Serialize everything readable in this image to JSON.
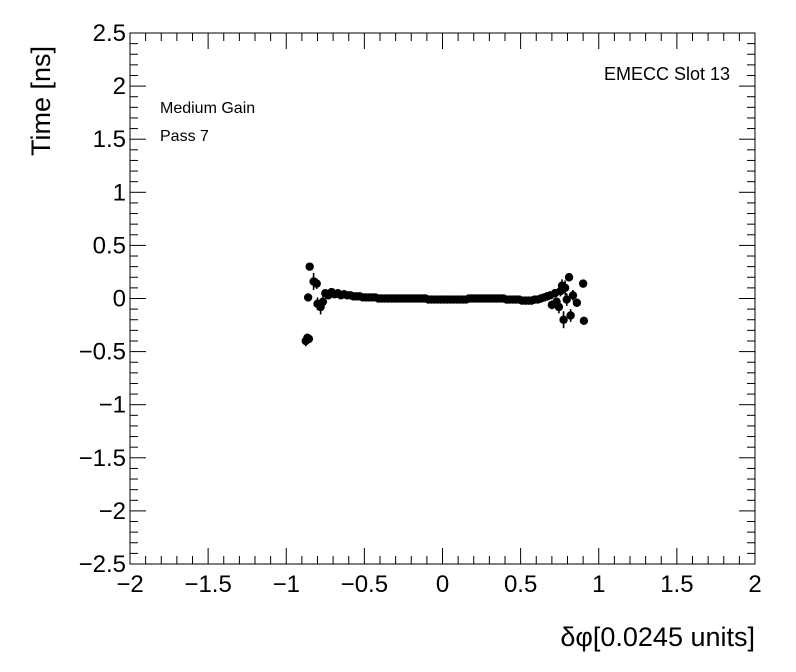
{
  "chart_data": {
    "type": "scatter",
    "xlabel": "δφ[0.0245 units]",
    "ylabel": "Time [ns]",
    "xlim": [
      -2,
      2
    ],
    "ylim": [
      -2.5,
      2.5
    ],
    "x_ticks": [
      "−2",
      "−1.5",
      "−1",
      "−0.5",
      "0",
      "0.5",
      "1",
      "1.5",
      "2"
    ],
    "y_ticks": [
      "−2.5",
      "−2",
      "−1.5",
      "−1",
      "−0.5",
      "0",
      "0.5",
      "1",
      "1.5",
      "2",
      "2.5"
    ],
    "annotations": {
      "top_right": "EMECC Slot 13",
      "line1": "Medium Gain",
      "line2": "Pass 7"
    },
    "grid": false,
    "legend": "none",
    "points": [
      {
        "x": -0.875,
        "y": -0.4,
        "err": 0.05
      },
      {
        "x": -0.865,
        "y": -0.37,
        "err": 0.04
      },
      {
        "x": -0.855,
        "y": -0.38,
        "err": 0.04
      },
      {
        "x": -0.86,
        "y": 0.01,
        "err": 0.03
      },
      {
        "x": -0.85,
        "y": 0.3,
        "err": 0.02
      },
      {
        "x": -0.825,
        "y": 0.16,
        "err": 0.08
      },
      {
        "x": -0.805,
        "y": 0.14,
        "err": 0.05
      },
      {
        "x": -0.8,
        "y": -0.05,
        "err": 0.06
      },
      {
        "x": -0.78,
        "y": -0.08,
        "err": 0.07
      },
      {
        "x": -0.765,
        "y": -0.03,
        "err": 0.05
      },
      {
        "x": -0.75,
        "y": 0.05,
        "err": 0.03
      },
      {
        "x": -0.73,
        "y": 0.03,
        "err": 0.03
      },
      {
        "x": -0.71,
        "y": 0.06,
        "err": 0.02
      },
      {
        "x": -0.69,
        "y": 0.04,
        "err": 0.02
      },
      {
        "x": -0.67,
        "y": 0.05,
        "err": 0.02
      },
      {
        "x": -0.65,
        "y": 0.03,
        "err": 0.02
      },
      {
        "x": -0.63,
        "y": 0.04,
        "err": 0.02
      },
      {
        "x": -0.61,
        "y": 0.03,
        "err": 0.01
      },
      {
        "x": -0.59,
        "y": 0.03,
        "err": 0.01
      },
      {
        "x": -0.57,
        "y": 0.02,
        "err": 0.01
      },
      {
        "x": -0.55,
        "y": 0.02,
        "err": 0.01
      },
      {
        "x": -0.53,
        "y": 0.02,
        "err": 0.01
      },
      {
        "x": -0.51,
        "y": 0.01,
        "err": 0.01
      },
      {
        "x": -0.49,
        "y": 0.01,
        "err": 0.01
      },
      {
        "x": -0.47,
        "y": 0.01,
        "err": 0.01
      },
      {
        "x": -0.45,
        "y": 0.01,
        "err": 0.01
      },
      {
        "x": -0.43,
        "y": 0.01,
        "err": 0.01
      },
      {
        "x": -0.41,
        "y": 0.0,
        "err": 0.01
      },
      {
        "x": -0.39,
        "y": 0.0,
        "err": 0.01
      },
      {
        "x": -0.37,
        "y": 0.0,
        "err": 0.01
      },
      {
        "x": -0.35,
        "y": 0.0,
        "err": 0.01
      },
      {
        "x": -0.33,
        "y": 0.0,
        "err": 0.01
      },
      {
        "x": -0.31,
        "y": 0.0,
        "err": 0.01
      },
      {
        "x": -0.29,
        "y": 0.0,
        "err": 0.01
      },
      {
        "x": -0.27,
        "y": 0.0,
        "err": 0.01
      },
      {
        "x": -0.25,
        "y": 0.0,
        "err": 0.01
      },
      {
        "x": -0.23,
        "y": 0.0,
        "err": 0.01
      },
      {
        "x": -0.21,
        "y": 0.0,
        "err": 0.01
      },
      {
        "x": -0.19,
        "y": 0.0,
        "err": 0.01
      },
      {
        "x": -0.17,
        "y": 0.0,
        "err": 0.01
      },
      {
        "x": -0.15,
        "y": 0.0,
        "err": 0.01
      },
      {
        "x": -0.13,
        "y": 0.0,
        "err": 0.01
      },
      {
        "x": -0.11,
        "y": 0.0,
        "err": 0.01
      },
      {
        "x": -0.09,
        "y": -0.01,
        "err": 0.01
      },
      {
        "x": -0.07,
        "y": -0.01,
        "err": 0.01
      },
      {
        "x": -0.05,
        "y": -0.01,
        "err": 0.01
      },
      {
        "x": -0.03,
        "y": -0.01,
        "err": 0.01
      },
      {
        "x": -0.01,
        "y": -0.01,
        "err": 0.01
      },
      {
        "x": 0.01,
        "y": -0.01,
        "err": 0.01
      },
      {
        "x": 0.03,
        "y": -0.01,
        "err": 0.01
      },
      {
        "x": 0.05,
        "y": -0.01,
        "err": 0.01
      },
      {
        "x": 0.07,
        "y": -0.01,
        "err": 0.01
      },
      {
        "x": 0.09,
        "y": -0.01,
        "err": 0.01
      },
      {
        "x": 0.11,
        "y": -0.01,
        "err": 0.01
      },
      {
        "x": 0.13,
        "y": -0.01,
        "err": 0.01
      },
      {
        "x": 0.15,
        "y": -0.01,
        "err": 0.01
      },
      {
        "x": 0.17,
        "y": 0.0,
        "err": 0.01
      },
      {
        "x": 0.19,
        "y": 0.0,
        "err": 0.01
      },
      {
        "x": 0.21,
        "y": 0.0,
        "err": 0.01
      },
      {
        "x": 0.23,
        "y": 0.0,
        "err": 0.01
      },
      {
        "x": 0.25,
        "y": 0.0,
        "err": 0.01
      },
      {
        "x": 0.27,
        "y": 0.0,
        "err": 0.01
      },
      {
        "x": 0.29,
        "y": 0.0,
        "err": 0.01
      },
      {
        "x": 0.31,
        "y": 0.0,
        "err": 0.01
      },
      {
        "x": 0.33,
        "y": 0.0,
        "err": 0.01
      },
      {
        "x": 0.35,
        "y": 0.0,
        "err": 0.01
      },
      {
        "x": 0.37,
        "y": 0.0,
        "err": 0.01
      },
      {
        "x": 0.39,
        "y": 0.0,
        "err": 0.01
      },
      {
        "x": 0.41,
        "y": -0.01,
        "err": 0.01
      },
      {
        "x": 0.43,
        "y": -0.01,
        "err": 0.01
      },
      {
        "x": 0.45,
        "y": -0.01,
        "err": 0.01
      },
      {
        "x": 0.47,
        "y": -0.01,
        "err": 0.01
      },
      {
        "x": 0.49,
        "y": -0.01,
        "err": 0.01
      },
      {
        "x": 0.51,
        "y": -0.02,
        "err": 0.01
      },
      {
        "x": 0.53,
        "y": -0.02,
        "err": 0.01
      },
      {
        "x": 0.55,
        "y": -0.02,
        "err": 0.01
      },
      {
        "x": 0.57,
        "y": -0.02,
        "err": 0.02
      },
      {
        "x": 0.59,
        "y": -0.01,
        "err": 0.02
      },
      {
        "x": 0.61,
        "y": -0.01,
        "err": 0.02
      },
      {
        "x": 0.63,
        "y": 0.0,
        "err": 0.02
      },
      {
        "x": 0.65,
        "y": 0.01,
        "err": 0.03
      },
      {
        "x": 0.67,
        "y": 0.02,
        "err": 0.03
      },
      {
        "x": 0.69,
        "y": 0.03,
        "err": 0.03
      },
      {
        "x": 0.7,
        "y": -0.06,
        "err": 0.04
      },
      {
        "x": 0.72,
        "y": 0.05,
        "err": 0.04
      },
      {
        "x": 0.73,
        "y": -0.03,
        "err": 0.04
      },
      {
        "x": 0.745,
        "y": -0.08,
        "err": 0.06
      },
      {
        "x": 0.755,
        "y": 0.07,
        "err": 0.05
      },
      {
        "x": 0.765,
        "y": 0.12,
        "err": 0.06
      },
      {
        "x": 0.775,
        "y": -0.2,
        "err": 0.08
      },
      {
        "x": 0.785,
        "y": 0.1,
        "err": 0.07
      },
      {
        "x": 0.795,
        "y": -0.01,
        "err": 0.06
      },
      {
        "x": 0.81,
        "y": 0.2,
        "err": 0.04
      },
      {
        "x": 0.82,
        "y": -0.16,
        "err": 0.06
      },
      {
        "x": 0.835,
        "y": 0.03,
        "err": 0.05
      },
      {
        "x": 0.86,
        "y": -0.04,
        "err": 0.04
      },
      {
        "x": 0.9,
        "y": 0.14,
        "err": 0.02
      },
      {
        "x": 0.905,
        "y": -0.21,
        "err": 0.02
      }
    ]
  }
}
